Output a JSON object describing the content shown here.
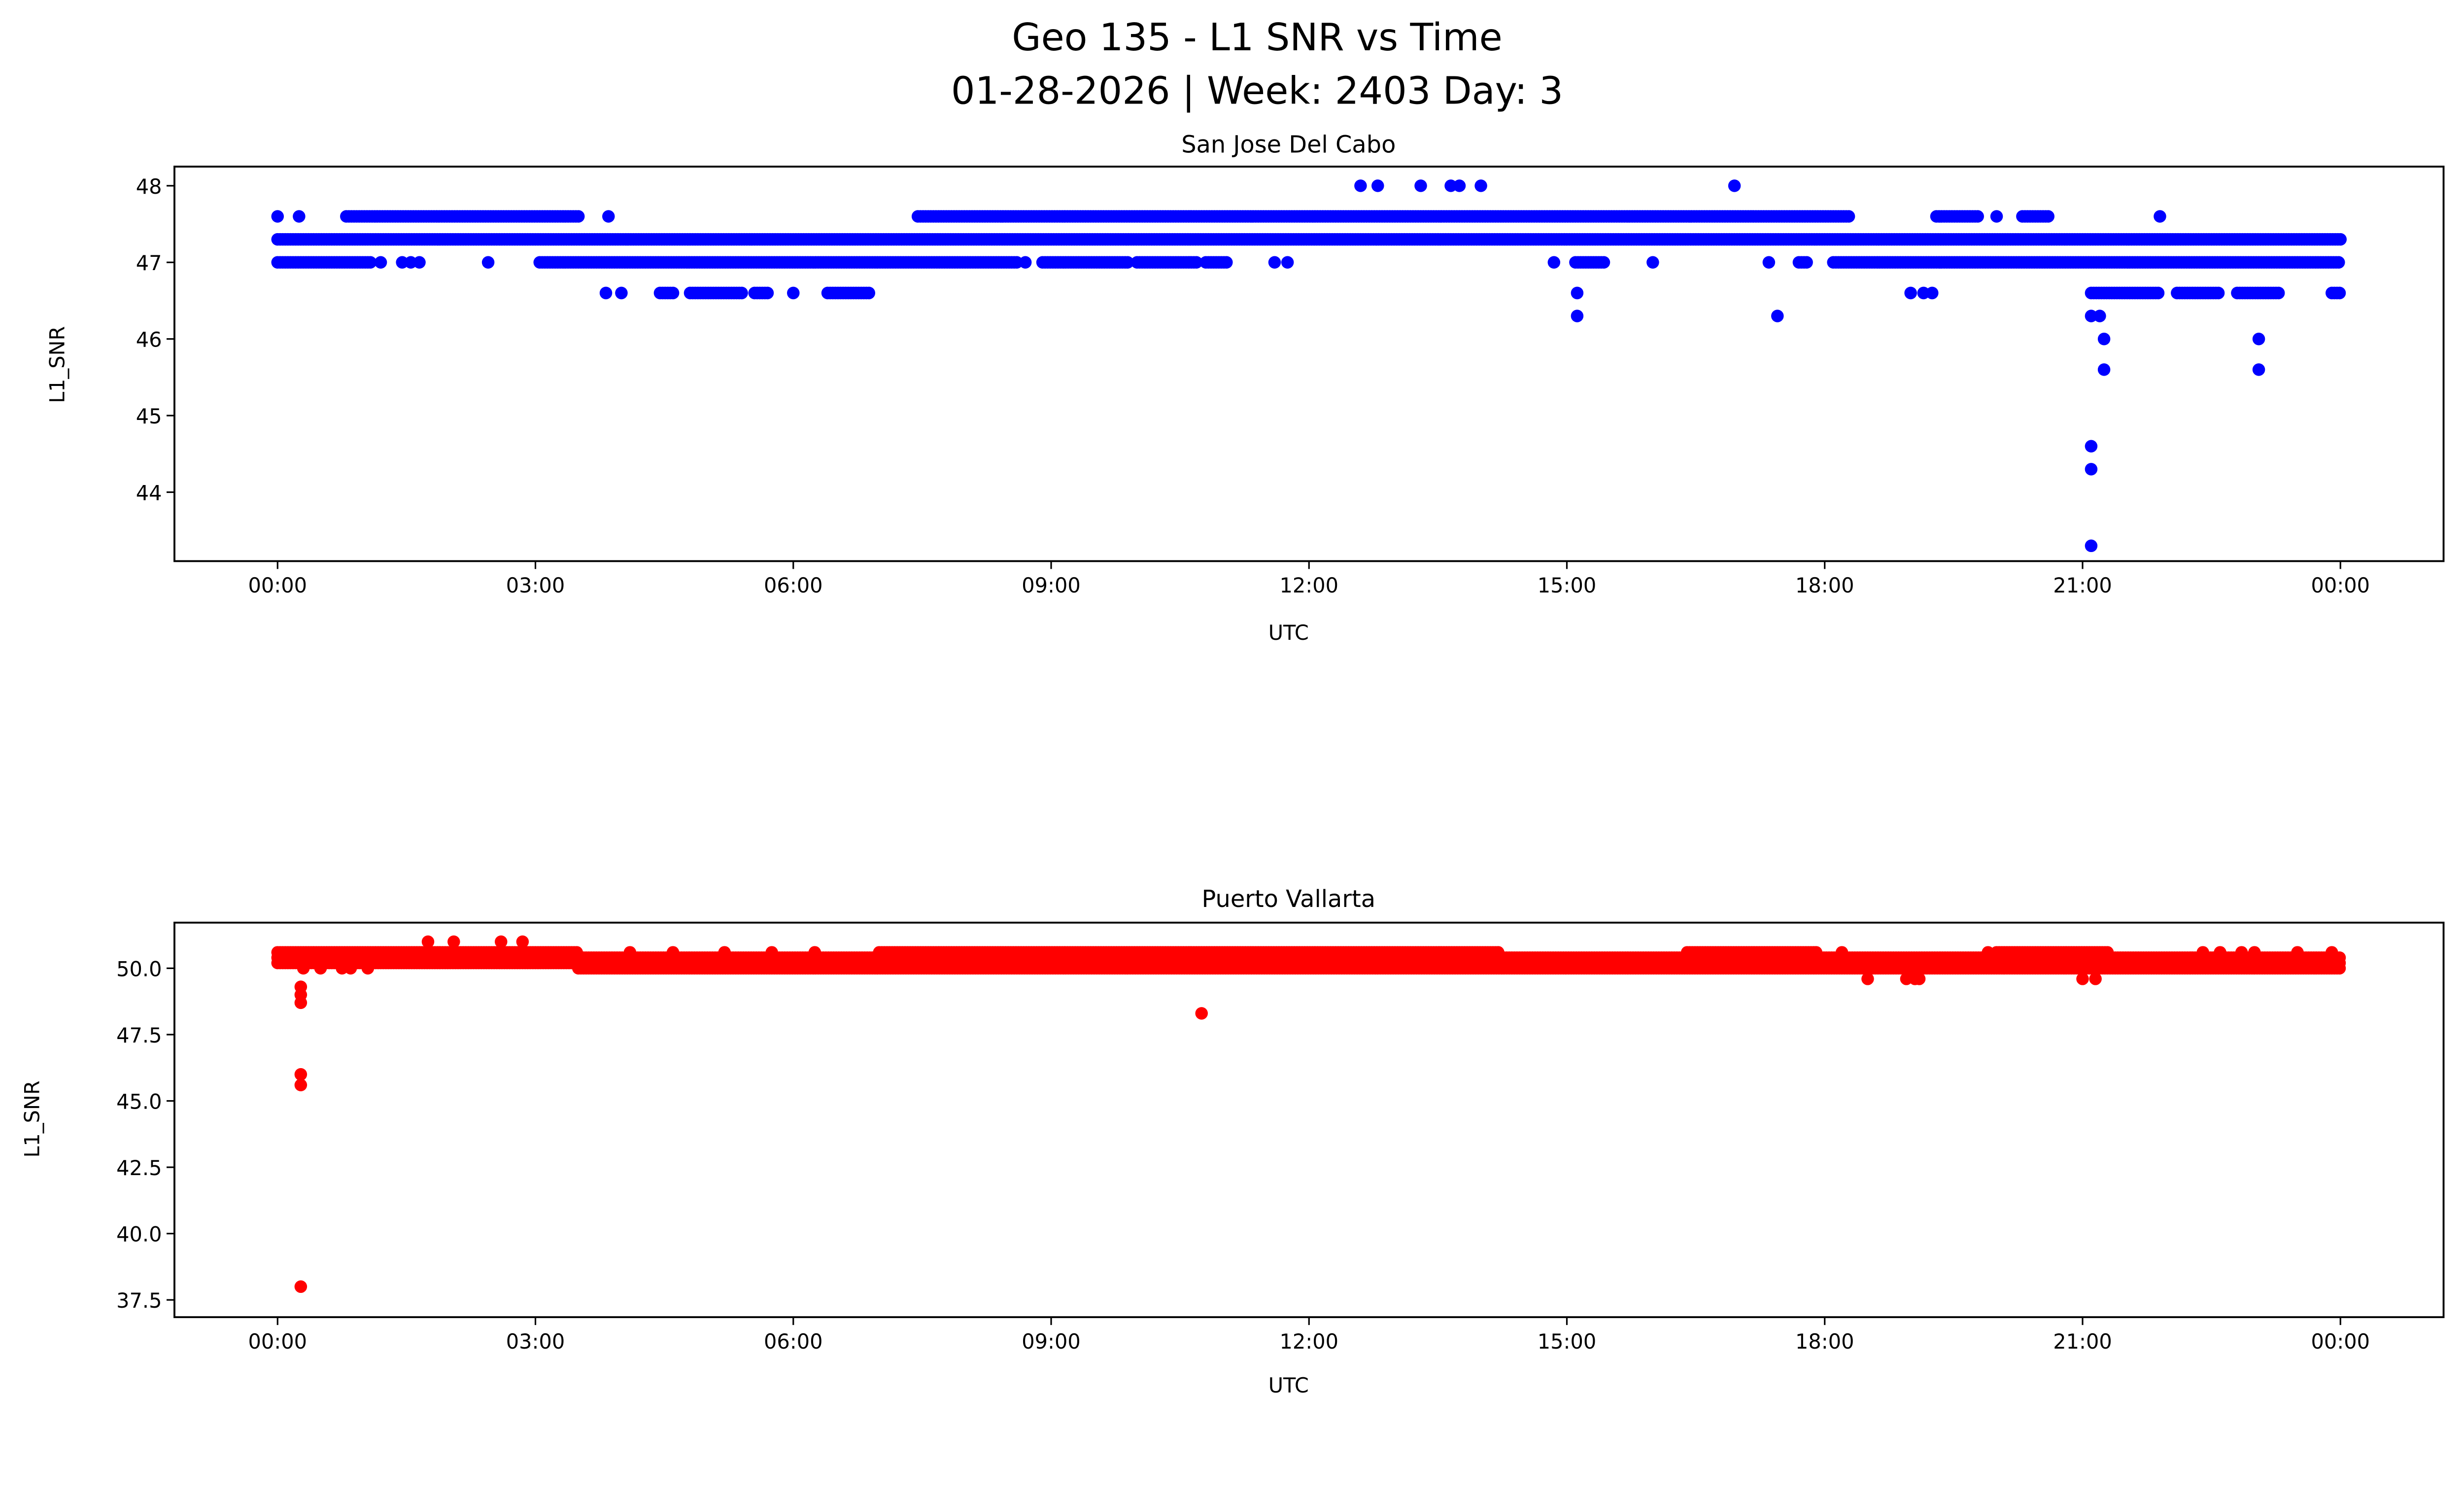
{
  "chart_data": [
    {
      "type": "scatter",
      "suptitle_line1": "Geo 135 - L1 SNR vs Time",
      "suptitle_line2": "01-28-2026 | Week: 2403 Day: 3",
      "title": "San Jose Del Cabo",
      "xlabel": "UTC",
      "ylabel": "L1_SNR",
      "color": "#0000ff",
      "xlim_hours": [
        -1.2,
        25.2
      ],
      "ylim": [
        43.1,
        48.25
      ],
      "xticks": [
        {
          "h": 0,
          "label": "00:00"
        },
        {
          "h": 3,
          "label": "03:00"
        },
        {
          "h": 6,
          "label": "06:00"
        },
        {
          "h": 9,
          "label": "09:00"
        },
        {
          "h": 12,
          "label": "12:00"
        },
        {
          "h": 15,
          "label": "15:00"
        },
        {
          "h": 18,
          "label": "18:00"
        },
        {
          "h": 21,
          "label": "21:00"
        },
        {
          "h": 24,
          "label": "00:00"
        }
      ],
      "yticks": [
        {
          "v": 44,
          "label": "44"
        },
        {
          "v": 45,
          "label": "45"
        },
        {
          "v": 46,
          "label": "46"
        },
        {
          "v": 47,
          "label": "47"
        },
        {
          "v": 48,
          "label": "48"
        }
      ],
      "bands": [
        {
          "value": 47.3,
          "from": 0,
          "to": 24
        },
        {
          "value": 47.0,
          "from": 0,
          "to": 1.1
        },
        {
          "value": 47.0,
          "from": 3.05,
          "to": 8.6
        },
        {
          "value": 47.0,
          "from": 8.9,
          "to": 9.9
        },
        {
          "value": 47.0,
          "from": 10.0,
          "to": 10.7
        },
        {
          "value": 47.0,
          "from": 10.8,
          "to": 11.05
        },
        {
          "value": 47.0,
          "from": 15.1,
          "to": 15.45
        },
        {
          "value": 47.0,
          "from": 17.7,
          "to": 17.8
        },
        {
          "value": 47.0,
          "from": 18.1,
          "to": 24
        },
        {
          "value": 47.6,
          "from": 0.8,
          "to": 3.5
        },
        {
          "value": 47.6,
          "from": 7.45,
          "to": 18.3
        },
        {
          "value": 47.6,
          "from": 19.3,
          "to": 19.8
        },
        {
          "value": 47.6,
          "from": 20.3,
          "to": 20.6
        },
        {
          "value": 46.6,
          "from": 4.45,
          "to": 4.6
        },
        {
          "value": 46.6,
          "from": 4.8,
          "to": 5.4
        },
        {
          "value": 46.6,
          "from": 5.55,
          "to": 5.7
        },
        {
          "value": 46.6,
          "from": 6.4,
          "to": 6.9
        },
        {
          "value": 46.6,
          "from": 21.1,
          "to": 21.9
        },
        {
          "value": 46.6,
          "from": 22.1,
          "to": 22.6
        },
        {
          "value": 46.6,
          "from": 22.8,
          "to": 23.3
        },
        {
          "value": 46.6,
          "from": 23.9,
          "to": 24
        }
      ],
      "points": [
        [
          1.2,
          47.0
        ],
        [
          1.45,
          47.0
        ],
        [
          1.55,
          47.0
        ],
        [
          1.65,
          47.0
        ],
        [
          2.45,
          47.0
        ],
        [
          8.7,
          47.0
        ],
        [
          11.6,
          47.0
        ],
        [
          11.75,
          47.0
        ],
        [
          14.85,
          47.0
        ],
        [
          16.0,
          47.0
        ],
        [
          17.35,
          47.0
        ],
        [
          0.0,
          47.6
        ],
        [
          0.25,
          47.6
        ],
        [
          3.85,
          47.6
        ],
        [
          20.0,
          47.6
        ],
        [
          21.9,
          47.6
        ],
        [
          12.6,
          48.0
        ],
        [
          12.8,
          48.0
        ],
        [
          13.3,
          48.0
        ],
        [
          13.65,
          48.0
        ],
        [
          13.75,
          48.0
        ],
        [
          14.0,
          48.0
        ],
        [
          16.95,
          48.0
        ],
        [
          3.82,
          46.6
        ],
        [
          4.0,
          46.6
        ],
        [
          6.0,
          46.6
        ],
        [
          15.12,
          46.6
        ],
        [
          19.0,
          46.6
        ],
        [
          19.15,
          46.6
        ],
        [
          19.25,
          46.6
        ],
        [
          15.12,
          46.3
        ],
        [
          17.45,
          46.3
        ],
        [
          21.1,
          46.3
        ],
        [
          21.2,
          46.3
        ],
        [
          21.25,
          46.0
        ],
        [
          23.05,
          46.0
        ],
        [
          21.25,
          45.6
        ],
        [
          23.05,
          45.6
        ],
        [
          21.1,
          44.6
        ],
        [
          21.1,
          44.3
        ],
        [
          21.1,
          43.3
        ]
      ]
    },
    {
      "type": "scatter",
      "title": "Puerto Vallarta",
      "xlabel": "UTC",
      "ylabel": "L1_SNR",
      "color": "#ff0000",
      "xlim_hours": [
        -1.2,
        25.2
      ],
      "ylim": [
        36.85,
        51.72
      ],
      "xticks": [
        {
          "h": 0,
          "label": "00:00"
        },
        {
          "h": 3,
          "label": "03:00"
        },
        {
          "h": 6,
          "label": "06:00"
        },
        {
          "h": 9,
          "label": "09:00"
        },
        {
          "h": 12,
          "label": "12:00"
        },
        {
          "h": 15,
          "label": "15:00"
        },
        {
          "h": 18,
          "label": "18:00"
        },
        {
          "h": 21,
          "label": "21:00"
        },
        {
          "h": 24,
          "label": "00:00"
        }
      ],
      "yticks": [
        {
          "v": 37.5,
          "label": "37.5"
        },
        {
          "v": 40.0,
          "label": "40.0"
        },
        {
          "v": 42.5,
          "label": "42.5"
        },
        {
          "v": 45.0,
          "label": "45.0"
        },
        {
          "v": 47.5,
          "label": "47.5"
        },
        {
          "v": 50.0,
          "label": "50.0"
        }
      ],
      "bands": [
        {
          "value": 50.6,
          "from": 0,
          "to": 3.5
        },
        {
          "value": 50.4,
          "from": 0,
          "to": 3.5
        },
        {
          "value": 50.2,
          "from": 0,
          "to": 3.5
        },
        {
          "value": 50.2,
          "from": 3.5,
          "to": 24
        },
        {
          "value": 50.0,
          "from": 3.5,
          "to": 24
        },
        {
          "value": 50.4,
          "from": 3.5,
          "to": 24
        },
        {
          "value": 50.6,
          "from": 7.0,
          "to": 14.2
        },
        {
          "value": 50.6,
          "from": 16.4,
          "to": 17.9
        },
        {
          "value": 50.6,
          "from": 20.0,
          "to": 21.3
        }
      ],
      "points": [
        [
          1.75,
          51.0
        ],
        [
          2.05,
          51.0
        ],
        [
          2.6,
          51.0
        ],
        [
          2.85,
          51.0
        ],
        [
          0.27,
          49.3
        ],
        [
          0.27,
          49.0
        ],
        [
          0.27,
          48.7
        ],
        [
          0.27,
          46.0
        ],
        [
          0.27,
          45.6
        ],
        [
          0.27,
          38.0
        ],
        [
          0.3,
          50.0
        ],
        [
          0.5,
          50.0
        ],
        [
          0.75,
          50.0
        ],
        [
          0.85,
          50.0
        ],
        [
          1.05,
          50.0
        ],
        [
          4.1,
          50.6
        ],
        [
          4.6,
          50.6
        ],
        [
          5.2,
          50.6
        ],
        [
          5.75,
          50.6
        ],
        [
          6.25,
          50.6
        ],
        [
          14.2,
          50.6
        ],
        [
          18.2,
          50.6
        ],
        [
          19.9,
          50.6
        ],
        [
          22.4,
          50.6
        ],
        [
          22.6,
          50.6
        ],
        [
          22.85,
          50.6
        ],
        [
          23.0,
          50.6
        ],
        [
          23.5,
          50.6
        ],
        [
          23.9,
          50.6
        ],
        [
          10.75,
          48.3
        ],
        [
          18.5,
          49.6
        ],
        [
          18.95,
          49.6
        ],
        [
          19.05,
          49.6
        ],
        [
          19.1,
          49.6
        ],
        [
          21.0,
          49.6
        ],
        [
          21.15,
          49.6
        ]
      ]
    }
  ]
}
